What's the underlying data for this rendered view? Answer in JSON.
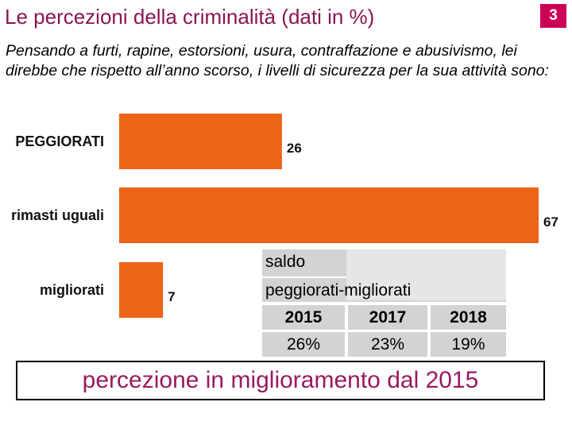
{
  "header": {
    "title": "Le percezioni della criminalità (dati in %)",
    "page_number": "3"
  },
  "question": "Pensando a furti, rapine, estorsioni, usura, contraffazione e abusivismo, lei direbbe che rispetto all’anno scorso, i livelli di sicurezza per la sua attività sono:",
  "chart_data": {
    "type": "bar",
    "orientation": "horizontal",
    "categories": [
      "PEGGIORATI",
      "rimasti uguali",
      "migliorati"
    ],
    "values": [
      26,
      67,
      7
    ],
    "title": "",
    "xlabel": "",
    "ylabel": "",
    "bar_color": "#ec6417"
  },
  "saldo_table": {
    "caption_line1": "saldo",
    "caption_line2": "peggiorati-migliorati",
    "years": [
      "2015",
      "2017",
      "2018"
    ],
    "values": [
      "26%",
      "23%",
      "19%"
    ]
  },
  "footer": {
    "text": "percezione in miglioramento dal 2015"
  }
}
